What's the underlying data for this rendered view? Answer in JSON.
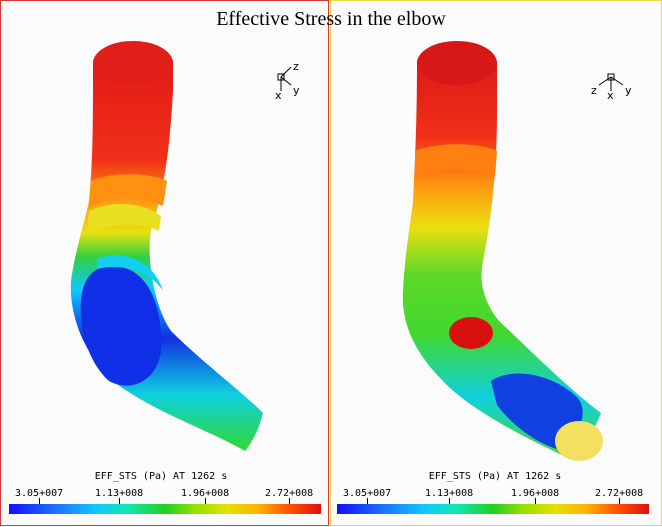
{
  "title": "Effective Stress in the elbow",
  "panels": [
    {
      "legend": {
        "caption": "EFF_STS (Pa) AT 1262 s",
        "ticks": [
          "3.05+007",
          "1.13+008",
          "1.96+008",
          "2.72+008"
        ]
      },
      "axes": {
        "z": "z",
        "y": "y",
        "x": "x"
      }
    },
    {
      "legend": {
        "caption": "EFF_STS (Pa) AT 1262 s",
        "ticks": [
          "3.05+007",
          "1.13+008",
          "1.96+008",
          "2.72+008"
        ]
      },
      "axes": {
        "z": "z",
        "x": "x",
        "y": "y"
      }
    }
  ]
}
